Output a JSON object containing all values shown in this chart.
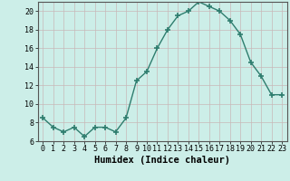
{
  "x": [
    0,
    1,
    2,
    3,
    4,
    5,
    6,
    7,
    8,
    9,
    10,
    11,
    12,
    13,
    14,
    15,
    16,
    17,
    18,
    19,
    20,
    21,
    22,
    23
  ],
  "y": [
    8.5,
    7.5,
    7.0,
    7.5,
    6.5,
    7.5,
    7.5,
    7.0,
    8.5,
    12.5,
    13.5,
    16.0,
    18.0,
    19.5,
    20.0,
    21.0,
    20.5,
    20.0,
    19.0,
    17.5,
    14.5,
    13.0,
    11.0,
    11.0
  ],
  "line_color": "#2e7d6e",
  "marker": "+",
  "marker_size": 4,
  "line_width": 1.0,
  "xlabel": "Humidex (Indice chaleur)",
  "xlim": [
    -0.5,
    23.5
  ],
  "ylim": [
    6,
    21
  ],
  "yticks": [
    6,
    8,
    10,
    12,
    14,
    16,
    18,
    20
  ],
  "xticks": [
    0,
    1,
    2,
    3,
    4,
    5,
    6,
    7,
    8,
    9,
    10,
    11,
    12,
    13,
    14,
    15,
    16,
    17,
    18,
    19,
    20,
    21,
    22,
    23
  ],
  "bg_color": "#cceee8",
  "grid_color": "#c8b8b8",
  "xlabel_fontsize": 7.5,
  "tick_fontsize": 6
}
